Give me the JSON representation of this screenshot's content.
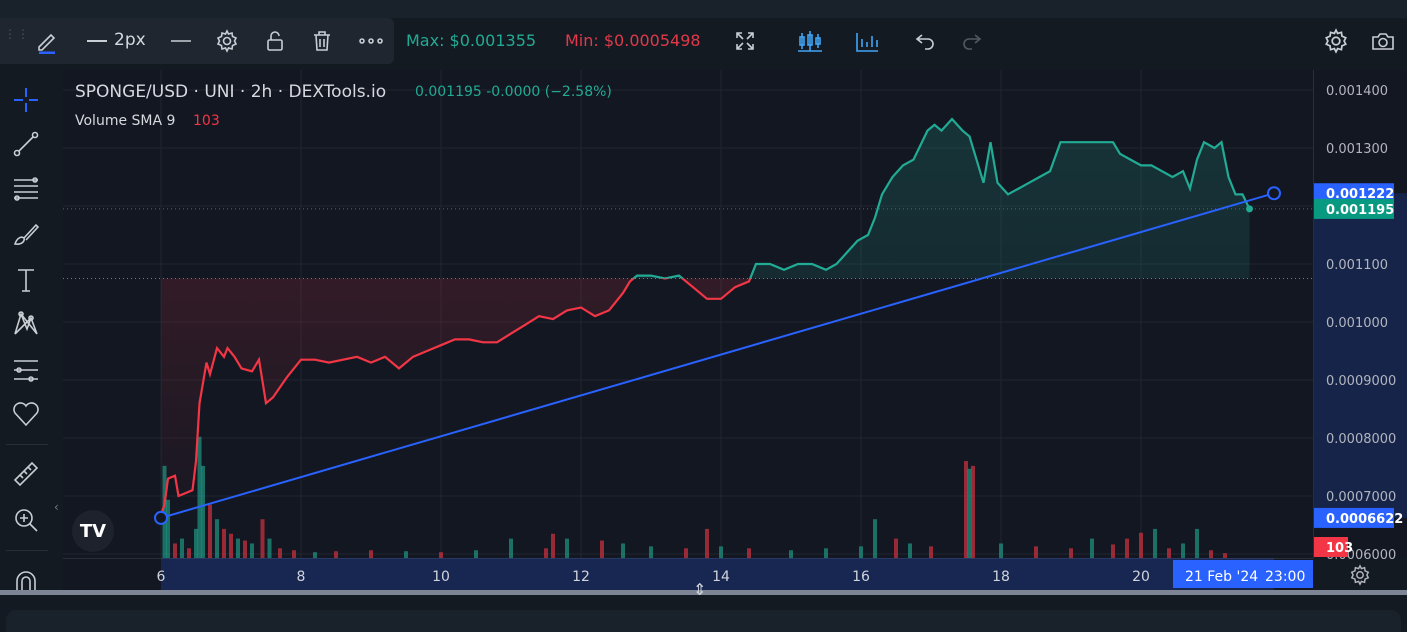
{
  "toolbar": {
    "line_width_label": "2px",
    "max_label": "Max: $0.001355",
    "min_label": "Min: $0.0005498",
    "icons": [
      "pencil-icon",
      "line-width-icon",
      "line-style-icon",
      "settings-icon",
      "unlock-icon",
      "trash-icon",
      "more-icon",
      "fullscreen-icon",
      "candles-icon",
      "indicators-icon",
      "undo-icon",
      "redo-icon",
      "settings-icon",
      "camera-icon"
    ]
  },
  "legend": {
    "title": "SPONGE/USD · UNI · 2h · DEXTools.io",
    "values": "0.001195  -0.0000 (−2.58%)",
    "volume_label": "Volume SMA 9",
    "volume_value": "103"
  },
  "left_tools": [
    "crosshair-icon",
    "trendline-icon",
    "fib-icon",
    "brush-icon",
    "text-icon",
    "pattern-icon",
    "prediction-icon",
    "heart-icon",
    "ruler-icon",
    "zoom-icon",
    "magnet-icon"
  ],
  "colors": {
    "up": "#22ab94",
    "down": "#f23645",
    "line": "#2962ff",
    "bg": "#131722",
    "grid": "#1f2430"
  },
  "chart_data": {
    "type": "line",
    "title": "SPONGE/USD · UNI · 2h · DEXTools.io",
    "xlabel": "",
    "ylabel": "",
    "ylim": [
      0.00059,
      0.00142
    ],
    "x_tick_labels": [
      "6",
      "8",
      "10",
      "12",
      "14",
      "16",
      "18",
      "20"
    ],
    "y_tick_labels": [
      "0.001400",
      "0.001300",
      "0.001200",
      "0.001100",
      "0.001000",
      "0.0009000",
      "0.0008000",
      "0.0007000",
      "0.0006000"
    ],
    "y_tick_values": [
      0.0014,
      0.0013,
      0.0012,
      0.0011,
      0.001,
      0.0009,
      0.0008,
      0.0007,
      0.0006
    ],
    "day_start": 6,
    "day_end": 21.3,
    "baseline_price": 0.001075,
    "price_series": [
      [
        6.0,
        0.000668
      ],
      [
        6.05,
        0.000685
      ],
      [
        6.1,
        0.00073
      ],
      [
        6.2,
        0.000735
      ],
      [
        6.25,
        0.0007
      ],
      [
        6.35,
        0.000705
      ],
      [
        6.45,
        0.00071
      ],
      [
        6.5,
        0.00076
      ],
      [
        6.55,
        0.00086
      ],
      [
        6.65,
        0.00093
      ],
      [
        6.7,
        0.00091
      ],
      [
        6.8,
        0.000955
      ],
      [
        6.9,
        0.00094
      ],
      [
        6.95,
        0.000955
      ],
      [
        7.05,
        0.00094
      ],
      [
        7.15,
        0.00092
      ],
      [
        7.3,
        0.000915
      ],
      [
        7.4,
        0.000935
      ],
      [
        7.5,
        0.00086
      ],
      [
        7.6,
        0.00087
      ],
      [
        7.8,
        0.000905
      ],
      [
        8.0,
        0.000935
      ],
      [
        8.2,
        0.000935
      ],
      [
        8.4,
        0.00093
      ],
      [
        8.6,
        0.000935
      ],
      [
        8.8,
        0.00094
      ],
      [
        9.0,
        0.00093
      ],
      [
        9.2,
        0.00094
      ],
      [
        9.4,
        0.00092
      ],
      [
        9.6,
        0.00094
      ],
      [
        9.8,
        0.00095
      ],
      [
        10.0,
        0.00096
      ],
      [
        10.2,
        0.00097
      ],
      [
        10.4,
        0.00097
      ],
      [
        10.6,
        0.000965
      ],
      [
        10.8,
        0.000965
      ],
      [
        11.0,
        0.00098
      ],
      [
        11.2,
        0.000995
      ],
      [
        11.4,
        0.00101
      ],
      [
        11.6,
        0.001005
      ],
      [
        11.8,
        0.00102
      ],
      [
        12.0,
        0.001025
      ],
      [
        12.2,
        0.00101
      ],
      [
        12.4,
        0.00102
      ],
      [
        12.6,
        0.00105
      ],
      [
        12.7,
        0.00107
      ],
      [
        12.8,
        0.00108
      ],
      [
        13.0,
        0.00108
      ],
      [
        13.2,
        0.001075
      ],
      [
        13.4,
        0.00108
      ],
      [
        13.6,
        0.00106
      ],
      [
        13.8,
        0.00104
      ],
      [
        14.0,
        0.00104
      ],
      [
        14.2,
        0.00106
      ],
      [
        14.4,
        0.00107
      ],
      [
        14.5,
        0.0011
      ],
      [
        14.7,
        0.0011
      ],
      [
        14.9,
        0.00109
      ],
      [
        15.1,
        0.0011
      ],
      [
        15.3,
        0.0011
      ],
      [
        15.5,
        0.00109
      ],
      [
        15.65,
        0.0011
      ],
      [
        15.8,
        0.00112
      ],
      [
        15.95,
        0.00114
      ],
      [
        16.1,
        0.00115
      ],
      [
        16.2,
        0.00118
      ],
      [
        16.3,
        0.00122
      ],
      [
        16.45,
        0.00125
      ],
      [
        16.6,
        0.00127
      ],
      [
        16.75,
        0.00128
      ],
      [
        16.85,
        0.001305
      ],
      [
        16.95,
        0.00133
      ],
      [
        17.05,
        0.00134
      ],
      [
        17.15,
        0.00133
      ],
      [
        17.3,
        0.00135
      ],
      [
        17.45,
        0.00133
      ],
      [
        17.55,
        0.00132
      ],
      [
        17.65,
        0.00128
      ],
      [
        17.75,
        0.00124
      ],
      [
        17.85,
        0.00131
      ],
      [
        17.95,
        0.00124
      ],
      [
        18.1,
        0.00122
      ],
      [
        18.25,
        0.00123
      ],
      [
        18.4,
        0.00124
      ],
      [
        18.55,
        0.00125
      ],
      [
        18.7,
        0.00126
      ],
      [
        18.85,
        0.00131
      ],
      [
        19.0,
        0.00131
      ],
      [
        19.15,
        0.00131
      ],
      [
        19.3,
        0.00131
      ],
      [
        19.45,
        0.00131
      ],
      [
        19.6,
        0.00131
      ],
      [
        19.7,
        0.00129
      ],
      [
        19.85,
        0.00128
      ],
      [
        20.0,
        0.00127
      ],
      [
        20.15,
        0.00127
      ],
      [
        20.3,
        0.00126
      ],
      [
        20.45,
        0.00125
      ],
      [
        20.6,
        0.00126
      ],
      [
        20.7,
        0.00123
      ],
      [
        20.8,
        0.00128
      ],
      [
        20.9,
        0.00131
      ],
      [
        21.05,
        0.0013
      ],
      [
        21.15,
        0.00131
      ],
      [
        21.25,
        0.00125
      ],
      [
        21.35,
        0.00122
      ],
      [
        21.45,
        0.00122
      ],
      [
        21.55,
        0.001195
      ]
    ],
    "volume_series": [
      [
        6.05,
        95,
        1
      ],
      [
        6.1,
        60,
        1
      ],
      [
        6.2,
        15,
        0
      ],
      [
        6.3,
        20,
        1
      ],
      [
        6.4,
        10,
        0
      ],
      [
        6.5,
        30,
        1
      ],
      [
        6.55,
        125,
        1
      ],
      [
        6.6,
        95,
        1
      ],
      [
        6.7,
        55,
        0
      ],
      [
        6.8,
        40,
        1
      ],
      [
        6.9,
        30,
        0
      ],
      [
        7.0,
        25,
        0
      ],
      [
        7.1,
        20,
        1
      ],
      [
        7.2,
        18,
        0
      ],
      [
        7.3,
        15,
        1
      ],
      [
        7.45,
        40,
        0
      ],
      [
        7.55,
        20,
        1
      ],
      [
        7.7,
        10,
        0
      ],
      [
        7.9,
        8,
        0
      ],
      [
        8.2,
        6,
        1
      ],
      [
        8.5,
        7,
        0
      ],
      [
        9.0,
        8,
        0
      ],
      [
        9.5,
        7,
        1
      ],
      [
        10.0,
        6,
        0
      ],
      [
        10.5,
        8,
        1
      ],
      [
        11.0,
        20,
        1
      ],
      [
        11.5,
        10,
        0
      ],
      [
        11.6,
        25,
        0
      ],
      [
        11.8,
        20,
        1
      ],
      [
        12.3,
        18,
        0
      ],
      [
        12.6,
        15,
        1
      ],
      [
        13.0,
        12,
        1
      ],
      [
        13.5,
        10,
        0
      ],
      [
        13.8,
        30,
        0
      ],
      [
        14.0,
        12,
        1
      ],
      [
        14.4,
        10,
        0
      ],
      [
        15.0,
        8,
        1
      ],
      [
        15.5,
        10,
        1
      ],
      [
        16.0,
        12,
        1
      ],
      [
        16.2,
        40,
        1
      ],
      [
        16.5,
        20,
        0
      ],
      [
        16.7,
        15,
        1
      ],
      [
        17.0,
        12,
        0
      ],
      [
        17.5,
        100,
        0
      ],
      [
        17.55,
        92,
        1
      ],
      [
        17.6,
        95,
        0
      ],
      [
        18.0,
        15,
        1
      ],
      [
        18.5,
        12,
        0
      ],
      [
        19.0,
        10,
        0
      ],
      [
        19.3,
        20,
        1
      ],
      [
        19.6,
        14,
        0
      ],
      [
        19.8,
        20,
        0
      ],
      [
        20.0,
        26,
        0
      ],
      [
        20.2,
        30,
        1
      ],
      [
        20.4,
        10,
        0
      ],
      [
        20.6,
        15,
        1
      ],
      [
        20.8,
        30,
        1
      ],
      [
        21.0,
        8,
        0
      ],
      [
        21.2,
        5,
        0
      ]
    ],
    "trendline": {
      "from": [
        6.0,
        0.0006622
      ],
      "to": [
        21.9,
        0.001222
      ]
    },
    "price_badges": [
      {
        "label": "0.001222",
        "color": "#2962ff"
      },
      {
        "label": "0.001195",
        "color": "#089981"
      },
      {
        "label": "0.0006622",
        "color": "#2962ff"
      },
      {
        "label": "103",
        "color": "#f23645"
      }
    ],
    "time_badge": {
      "date": "21 Feb '24",
      "time": "23:00"
    }
  }
}
